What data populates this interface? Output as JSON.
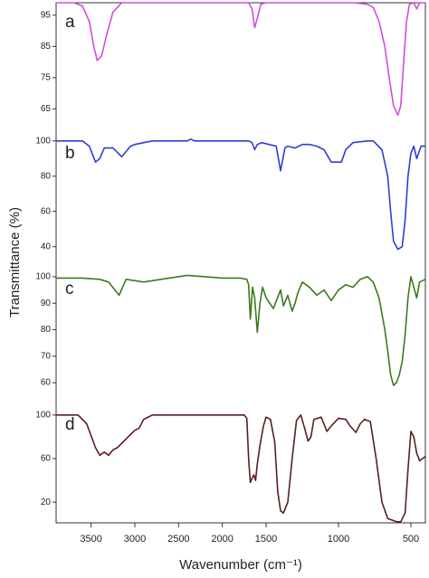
{
  "chart_data": [
    {
      "type": "line",
      "annotation": "a",
      "ylabel": "Transmittance (%)",
      "ylim": [
        57,
        99
      ],
      "yticks": [
        65,
        75,
        85,
        95
      ],
      "x": [
        3900,
        3700,
        3600,
        3520,
        3470,
        3430,
        3380,
        3320,
        3250,
        3150,
        2000,
        1700,
        1660,
        1630,
        1600,
        1560,
        1500,
        900,
        800,
        760,
        720,
        680,
        650,
        620,
        590,
        570,
        550,
        530,
        510,
        480,
        460,
        440,
        400
      ],
      "series": [
        {
          "color": "#d24ed8",
          "values": [
            99,
            99,
            98,
            93,
            85,
            80.5,
            82,
            89,
            96,
            99,
            99,
            99,
            97,
            91,
            94,
            98.5,
            99,
            99,
            98.5,
            97.5,
            93,
            85,
            75,
            66,
            63,
            66,
            80,
            93,
            98.5,
            99,
            97,
            99,
            99
          ]
        }
      ]
    },
    {
      "type": "line",
      "annotation": "b",
      "ylim": [
        27,
        104
      ],
      "yticks": [
        40,
        60,
        80,
        100
      ],
      "x": [
        3900,
        3600,
        3520,
        3450,
        3400,
        3350,
        3250,
        3150,
        3050,
        3000,
        2800,
        2400,
        2360,
        2320,
        1700,
        1660,
        1630,
        1600,
        1550,
        1480,
        1430,
        1400,
        1370,
        1350,
        1300,
        1250,
        1200,
        1150,
        1100,
        1050,
        980,
        950,
        900,
        800,
        760,
        700,
        660,
        640,
        620,
        590,
        560,
        540,
        520,
        500,
        480,
        460,
        430,
        400
      ],
      "series": [
        {
          "color": "#2f3ed6",
          "values": [
            100,
            100,
            97,
            88,
            90,
            96,
            96,
            91,
            97,
            98,
            100,
            100,
            101,
            100,
            100,
            99,
            95,
            98,
            99,
            98,
            97,
            83,
            96,
            97,
            96,
            98,
            98,
            97,
            95,
            88,
            88,
            95,
            99,
            100,
            100,
            95,
            80,
            60,
            43,
            38.5,
            40,
            55,
            80,
            93,
            97,
            90,
            97,
            97
          ]
        }
      ]
    },
    {
      "type": "line",
      "annotation": "c",
      "ylim": [
        51.5,
        102.7
      ],
      "yticks": [
        60,
        70,
        80,
        90,
        100
      ],
      "x": [
        3900,
        3600,
        3400,
        3300,
        3180,
        3100,
        2900,
        2700,
        2400,
        2000,
        1800,
        1720,
        1700,
        1680,
        1655,
        1630,
        1600,
        1570,
        1540,
        1500,
        1450,
        1400,
        1380,
        1350,
        1320,
        1300,
        1280,
        1250,
        1200,
        1150,
        1100,
        1050,
        1000,
        950,
        900,
        850,
        800,
        760,
        720,
        700,
        680,
        660,
        640,
        620,
        600,
        580,
        560,
        540,
        520,
        500,
        480,
        460,
        440,
        400
      ],
      "series": [
        {
          "color": "#3b7a1c",
          "values": [
            99.5,
            99.5,
            99,
            98,
            93,
            99,
            98,
            99,
            100.5,
            99.5,
            99.5,
            99,
            97,
            84,
            96,
            92,
            79,
            90,
            96,
            92,
            88,
            95,
            89,
            93,
            87,
            90,
            94,
            98,
            96,
            93,
            95,
            91,
            95,
            97,
            96,
            99,
            100,
            98,
            92,
            86,
            80,
            72,
            63,
            59,
            60,
            63,
            68,
            78,
            92,
            100,
            96,
            92,
            98,
            99
          ]
        }
      ]
    },
    {
      "type": "line",
      "annotation": "d",
      "xlabel": "Wavenumber (cm⁻¹)",
      "xlim": [
        3900,
        400
      ],
      "x_scale_break": 1500,
      "xticks": [
        3500,
        3000,
        2500,
        2000,
        1500,
        1000,
        500
      ],
      "ylim": [
        1,
        109
      ],
      "yticks": [
        20,
        60,
        100
      ],
      "x": [
        3900,
        3650,
        3550,
        3450,
        3400,
        3350,
        3300,
        3250,
        3200,
        3100,
        3000,
        2950,
        2900,
        2800,
        1750,
        1720,
        1700,
        1680,
        1660,
        1640,
        1620,
        1600,
        1570,
        1530,
        1500,
        1470,
        1440,
        1420,
        1400,
        1380,
        1350,
        1320,
        1290,
        1260,
        1230,
        1210,
        1190,
        1170,
        1120,
        1080,
        1050,
        1000,
        950,
        920,
        880,
        850,
        820,
        780,
        740,
        700,
        660,
        600,
        570,
        540,
        520,
        500,
        480,
        460,
        440,
        420,
        400
      ],
      "series": [
        {
          "color": "#5a1f22",
          "values": [
            100,
            100,
            92,
            70,
            63,
            66,
            63,
            68,
            70,
            78,
            86,
            88,
            96,
            100,
            100,
            97,
            60,
            38,
            42,
            45,
            40,
            55,
            72,
            90,
            98,
            96,
            75,
            30,
            12,
            10,
            20,
            60,
            95,
            100,
            86,
            76,
            80,
            96,
            98,
            85,
            90,
            97,
            96,
            90,
            84,
            92,
            96,
            94,
            60,
            20,
            5,
            2,
            2,
            10,
            50,
            85,
            80,
            65,
            58,
            60,
            62
          ]
        }
      ]
    }
  ]
}
